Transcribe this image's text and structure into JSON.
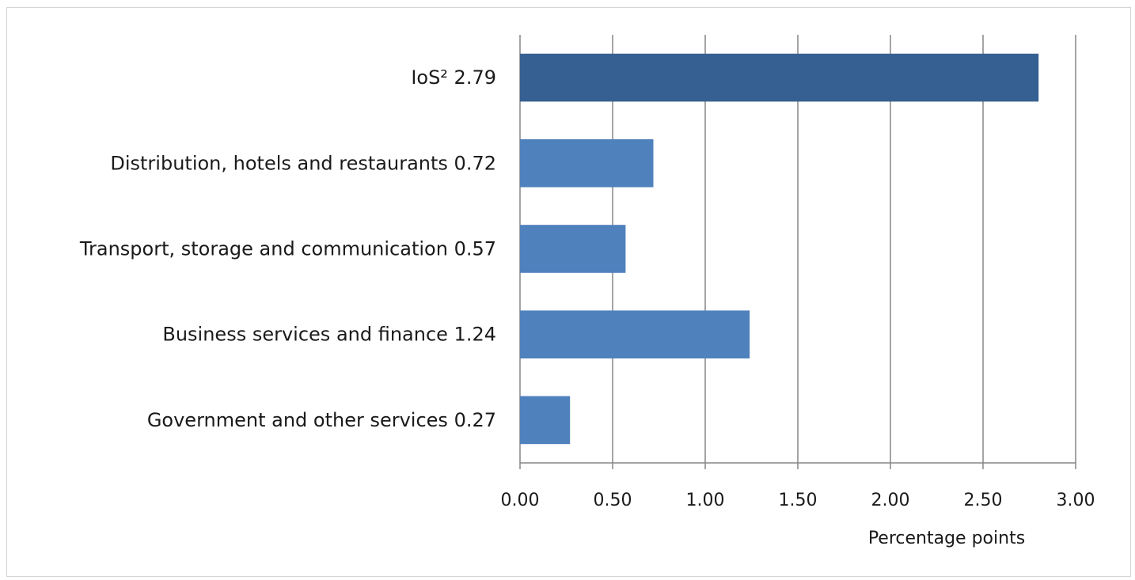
{
  "chart_data": {
    "type": "bar",
    "orientation": "horizontal",
    "categories": [
      "IoS² 2.79",
      "Distribution, hotels and restaurants 0.72",
      "Transport, storage and communication 0.57",
      "Business services and finance 1.24",
      "Government and other services 0.27"
    ],
    "values": [
      2.8,
      0.72,
      0.57,
      1.24,
      0.27
    ],
    "bar_colors": [
      "#366092",
      "#4f81bd",
      "#4f81bd",
      "#4f81bd",
      "#4f81bd"
    ],
    "xticks": [
      "0.00",
      "0.50",
      "1.00",
      "1.50",
      "2.00",
      "2.50",
      "3.00"
    ],
    "xlim": [
      0,
      3
    ],
    "xlabel": "Percentage points",
    "grid": true,
    "gridline_color": "#868686"
  }
}
